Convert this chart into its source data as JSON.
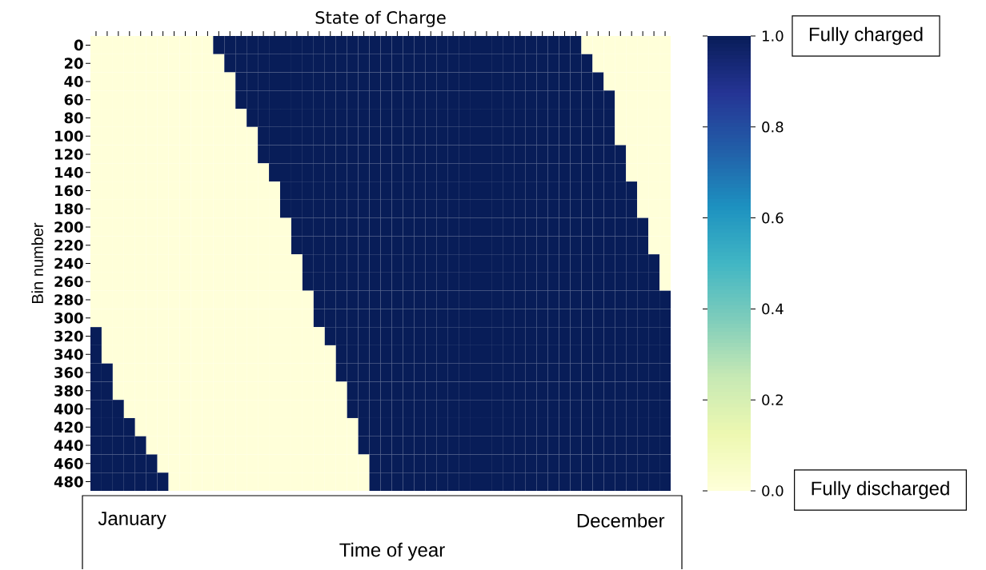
{
  "chart_data": {
    "type": "heatmap",
    "title": "State of Charge",
    "xlabel": "Time of year",
    "ylabel": "Bin number",
    "categories": [
      null,
      null,
      null,
      null,
      null,
      null,
      null,
      null,
      null,
      null,
      null,
      null,
      null,
      null,
      null,
      null,
      null,
      null,
      null,
      null,
      null,
      null,
      null,
      null,
      null,
      null,
      null,
      null,
      null,
      null,
      null,
      null,
      null,
      null,
      null,
      null,
      null,
      null,
      null,
      null,
      null,
      null,
      null,
      null,
      null,
      null,
      null,
      null,
      null,
      null,
      null,
      null
    ],
    "y_categories": [
      "0",
      "20",
      "40",
      "60",
      "80",
      "100",
      "120",
      "140",
      "160",
      "180",
      "200",
      "220",
      "240",
      "260",
      "280",
      "300",
      "320",
      "340",
      "360",
      "380",
      "400",
      "420",
      "440",
      "460",
      "480"
    ],
    "cells": [
      [
        0,
        0,
        0,
        0,
        0,
        0,
        0,
        0,
        0,
        0,
        0,
        1,
        1,
        1,
        1,
        1,
        1,
        1,
        1,
        1,
        1,
        1,
        1,
        1,
        1,
        1,
        1,
        1,
        1,
        1,
        1,
        1,
        1,
        1,
        1,
        1,
        1,
        1,
        1,
        1,
        1,
        1,
        1,
        1,
        0,
        0,
        0,
        0,
        0,
        0,
        0,
        0
      ],
      [
        0,
        0,
        0,
        0,
        0,
        0,
        0,
        0,
        0,
        0,
        0,
        0,
        1,
        1,
        1,
        1,
        1,
        1,
        1,
        1,
        1,
        1,
        1,
        1,
        1,
        1,
        1,
        1,
        1,
        1,
        1,
        1,
        1,
        1,
        1,
        1,
        1,
        1,
        1,
        1,
        1,
        1,
        1,
        1,
        1,
        0,
        0,
        0,
        0,
        0,
        0,
        0
      ],
      [
        0,
        0,
        0,
        0,
        0,
        0,
        0,
        0,
        0,
        0,
        0,
        0,
        0,
        1,
        1,
        1,
        1,
        1,
        1,
        1,
        1,
        1,
        1,
        1,
        1,
        1,
        1,
        1,
        1,
        1,
        1,
        1,
        1,
        1,
        1,
        1,
        1,
        1,
        1,
        1,
        1,
        1,
        1,
        1,
        1,
        1,
        0,
        0,
        0,
        0,
        0,
        0
      ],
      [
        0,
        0,
        0,
        0,
        0,
        0,
        0,
        0,
        0,
        0,
        0,
        0,
        0,
        1,
        1,
        1,
        1,
        1,
        1,
        1,
        1,
        1,
        1,
        1,
        1,
        1,
        1,
        1,
        1,
        1,
        1,
        1,
        1,
        1,
        1,
        1,
        1,
        1,
        1,
        1,
        1,
        1,
        1,
        1,
        1,
        1,
        1,
        0,
        0,
        0,
        0,
        0
      ],
      [
        0,
        0,
        0,
        0,
        0,
        0,
        0,
        0,
        0,
        0,
        0,
        0,
        0,
        0,
        1,
        1,
        1,
        1,
        1,
        1,
        1,
        1,
        1,
        1,
        1,
        1,
        1,
        1,
        1,
        1,
        1,
        1,
        1,
        1,
        1,
        1,
        1,
        1,
        1,
        1,
        1,
        1,
        1,
        1,
        1,
        1,
        1,
        0,
        0,
        0,
        0,
        0
      ],
      [
        0,
        0,
        0,
        0,
        0,
        0,
        0,
        0,
        0,
        0,
        0,
        0,
        0,
        0,
        0,
        1,
        1,
        1,
        1,
        1,
        1,
        1,
        1,
        1,
        1,
        1,
        1,
        1,
        1,
        1,
        1,
        1,
        1,
        1,
        1,
        1,
        1,
        1,
        1,
        1,
        1,
        1,
        1,
        1,
        1,
        1,
        1,
        0,
        0,
        0,
        0,
        0
      ],
      [
        0,
        0,
        0,
        0,
        0,
        0,
        0,
        0,
        0,
        0,
        0,
        0,
        0,
        0,
        0,
        1,
        1,
        1,
        1,
        1,
        1,
        1,
        1,
        1,
        1,
        1,
        1,
        1,
        1,
        1,
        1,
        1,
        1,
        1,
        1,
        1,
        1,
        1,
        1,
        1,
        1,
        1,
        1,
        1,
        1,
        1,
        1,
        1,
        0,
        0,
        0,
        0
      ],
      [
        0,
        0,
        0,
        0,
        0,
        0,
        0,
        0,
        0,
        0,
        0,
        0,
        0,
        0,
        0,
        0,
        1,
        1,
        1,
        1,
        1,
        1,
        1,
        1,
        1,
        1,
        1,
        1,
        1,
        1,
        1,
        1,
        1,
        1,
        1,
        1,
        1,
        1,
        1,
        1,
        1,
        1,
        1,
        1,
        1,
        1,
        1,
        1,
        0,
        0,
        0,
        0
      ],
      [
        0,
        0,
        0,
        0,
        0,
        0,
        0,
        0,
        0,
        0,
        0,
        0,
        0,
        0,
        0,
        0,
        0,
        1,
        1,
        1,
        1,
        1,
        1,
        1,
        1,
        1,
        1,
        1,
        1,
        1,
        1,
        1,
        1,
        1,
        1,
        1,
        1,
        1,
        1,
        1,
        1,
        1,
        1,
        1,
        1,
        1,
        1,
        1,
        1,
        0,
        0,
        0
      ],
      [
        0,
        0,
        0,
        0,
        0,
        0,
        0,
        0,
        0,
        0,
        0,
        0,
        0,
        0,
        0,
        0,
        0,
        1,
        1,
        1,
        1,
        1,
        1,
        1,
        1,
        1,
        1,
        1,
        1,
        1,
        1,
        1,
        1,
        1,
        1,
        1,
        1,
        1,
        1,
        1,
        1,
        1,
        1,
        1,
        1,
        1,
        1,
        1,
        1,
        0,
        0,
        0
      ],
      [
        0,
        0,
        0,
        0,
        0,
        0,
        0,
        0,
        0,
        0,
        0,
        0,
        0,
        0,
        0,
        0,
        0,
        0,
        1,
        1,
        1,
        1,
        1,
        1,
        1,
        1,
        1,
        1,
        1,
        1,
        1,
        1,
        1,
        1,
        1,
        1,
        1,
        1,
        1,
        1,
        1,
        1,
        1,
        1,
        1,
        1,
        1,
        1,
        1,
        1,
        0,
        0
      ],
      [
        0,
        0,
        0,
        0,
        0,
        0,
        0,
        0,
        0,
        0,
        0,
        0,
        0,
        0,
        0,
        0,
        0,
        0,
        1,
        1,
        1,
        1,
        1,
        1,
        1,
        1,
        1,
        1,
        1,
        1,
        1,
        1,
        1,
        1,
        1,
        1,
        1,
        1,
        1,
        1,
        1,
        1,
        1,
        1,
        1,
        1,
        1,
        1,
        1,
        1,
        0,
        0
      ],
      [
        0,
        0,
        0,
        0,
        0,
        0,
        0,
        0,
        0,
        0,
        0,
        0,
        0,
        0,
        0,
        0,
        0,
        0,
        0,
        1,
        1,
        1,
        1,
        1,
        1,
        1,
        1,
        1,
        1,
        1,
        1,
        1,
        1,
        1,
        1,
        1,
        1,
        1,
        1,
        1,
        1,
        1,
        1,
        1,
        1,
        1,
        1,
        1,
        1,
        1,
        1,
        0
      ],
      [
        0,
        0,
        0,
        0,
        0,
        0,
        0,
        0,
        0,
        0,
        0,
        0,
        0,
        0,
        0,
        0,
        0,
        0,
        0,
        1,
        1,
        1,
        1,
        1,
        1,
        1,
        1,
        1,
        1,
        1,
        1,
        1,
        1,
        1,
        1,
        1,
        1,
        1,
        1,
        1,
        1,
        1,
        1,
        1,
        1,
        1,
        1,
        1,
        1,
        1,
        1,
        0
      ],
      [
        0,
        0,
        0,
        0,
        0,
        0,
        0,
        0,
        0,
        0,
        0,
        0,
        0,
        0,
        0,
        0,
        0,
        0,
        0,
        0,
        1,
        1,
        1,
        1,
        1,
        1,
        1,
        1,
        1,
        1,
        1,
        1,
        1,
        1,
        1,
        1,
        1,
        1,
        1,
        1,
        1,
        1,
        1,
        1,
        1,
        1,
        1,
        1,
        1,
        1,
        1,
        1
      ],
      [
        0,
        0,
        0,
        0,
        0,
        0,
        0,
        0,
        0,
        0,
        0,
        0,
        0,
        0,
        0,
        0,
        0,
        0,
        0,
        0,
        1,
        1,
        1,
        1,
        1,
        1,
        1,
        1,
        1,
        1,
        1,
        1,
        1,
        1,
        1,
        1,
        1,
        1,
        1,
        1,
        1,
        1,
        1,
        1,
        1,
        1,
        1,
        1,
        1,
        1,
        1,
        1
      ],
      [
        1,
        0,
        0,
        0,
        0,
        0,
        0,
        0,
        0,
        0,
        0,
        0,
        0,
        0,
        0,
        0,
        0,
        0,
        0,
        0,
        0,
        1,
        1,
        1,
        1,
        1,
        1,
        1,
        1,
        1,
        1,
        1,
        1,
        1,
        1,
        1,
        1,
        1,
        1,
        1,
        1,
        1,
        1,
        1,
        1,
        1,
        1,
        1,
        1,
        1,
        1,
        1
      ],
      [
        1,
        0,
        0,
        0,
        0,
        0,
        0,
        0,
        0,
        0,
        0,
        0,
        0,
        0,
        0,
        0,
        0,
        0,
        0,
        0,
        0,
        0,
        1,
        1,
        1,
        1,
        1,
        1,
        1,
        1,
        1,
        1,
        1,
        1,
        1,
        1,
        1,
        1,
        1,
        1,
        1,
        1,
        1,
        1,
        1,
        1,
        1,
        1,
        1,
        1,
        1,
        1
      ],
      [
        1,
        1,
        0,
        0,
        0,
        0,
        0,
        0,
        0,
        0,
        0,
        0,
        0,
        0,
        0,
        0,
        0,
        0,
        0,
        0,
        0,
        0,
        1,
        1,
        1,
        1,
        1,
        1,
        1,
        1,
        1,
        1,
        1,
        1,
        1,
        1,
        1,
        1,
        1,
        1,
        1,
        1,
        1,
        1,
        1,
        1,
        1,
        1,
        1,
        1,
        1,
        1
      ],
      [
        1,
        1,
        0,
        0,
        0,
        0,
        0,
        0,
        0,
        0,
        0,
        0,
        0,
        0,
        0,
        0,
        0,
        0,
        0,
        0,
        0,
        0,
        0,
        1,
        1,
        1,
        1,
        1,
        1,
        1,
        1,
        1,
        1,
        1,
        1,
        1,
        1,
        1,
        1,
        1,
        1,
        1,
        1,
        1,
        1,
        1,
        1,
        1,
        1,
        1,
        1,
        1
      ],
      [
        1,
        1,
        1,
        0,
        0,
        0,
        0,
        0,
        0,
        0,
        0,
        0,
        0,
        0,
        0,
        0,
        0,
        0,
        0,
        0,
        0,
        0,
        0,
        1,
        1,
        1,
        1,
        1,
        1,
        1,
        1,
        1,
        1,
        1,
        1,
        1,
        1,
        1,
        1,
        1,
        1,
        1,
        1,
        1,
        1,
        1,
        1,
        1,
        1,
        1,
        1,
        1
      ],
      [
        1,
        1,
        1,
        1,
        0,
        0,
        0,
        0,
        0,
        0,
        0,
        0,
        0,
        0,
        0,
        0,
        0,
        0,
        0,
        0,
        0,
        0,
        0,
        0,
        1,
        1,
        1,
        1,
        1,
        1,
        1,
        1,
        1,
        1,
        1,
        1,
        1,
        1,
        1,
        1,
        1,
        1,
        1,
        1,
        1,
        1,
        1,
        1,
        1,
        1,
        1,
        1
      ],
      [
        1,
        1,
        1,
        1,
        1,
        0,
        0,
        0,
        0,
        0,
        0,
        0,
        0,
        0,
        0,
        0,
        0,
        0,
        0,
        0,
        0,
        0,
        0,
        0,
        1,
        1,
        1,
        1,
        1,
        1,
        1,
        1,
        1,
        1,
        1,
        1,
        1,
        1,
        1,
        1,
        1,
        1,
        1,
        1,
        1,
        1,
        1,
        1,
        1,
        1,
        1,
        1
      ],
      [
        1,
        1,
        1,
        1,
        1,
        1,
        0,
        0,
        0,
        0,
        0,
        0,
        0,
        0,
        0,
        0,
        0,
        0,
        0,
        0,
        0,
        0,
        0,
        0,
        0,
        1,
        1,
        1,
        1,
        1,
        1,
        1,
        1,
        1,
        1,
        1,
        1,
        1,
        1,
        1,
        1,
        1,
        1,
        1,
        1,
        1,
        1,
        1,
        1,
        1,
        1,
        1
      ],
      [
        1,
        1,
        1,
        1,
        1,
        1,
        1,
        0,
        0,
        0,
        0,
        0,
        0,
        0,
        0,
        0,
        0,
        0,
        0,
        0,
        0,
        0,
        0,
        0,
        0,
        1,
        1,
        1,
        1,
        1,
        1,
        1,
        1,
        1,
        1,
        1,
        1,
        1,
        1,
        1,
        1,
        1,
        1,
        1,
        1,
        1,
        1,
        1,
        1,
        1,
        1,
        1
      ]
    ],
    "clim": [
      0,
      1
    ],
    "cticks": [
      {
        "value": 0,
        "label": "0.0"
      },
      {
        "value": 0.2,
        "label": "0.2"
      },
      {
        "value": 0.4,
        "label": "0.4"
      },
      {
        "value": 0.6,
        "label": "0.6"
      },
      {
        "value": 0.8,
        "label": "0.8"
      },
      {
        "value": 1,
        "label": "1.0"
      }
    ],
    "tick_labels": "y",
    "annotations": [
      "January",
      "December",
      "Fully charged",
      "Fully discharged"
    ]
  }
}
